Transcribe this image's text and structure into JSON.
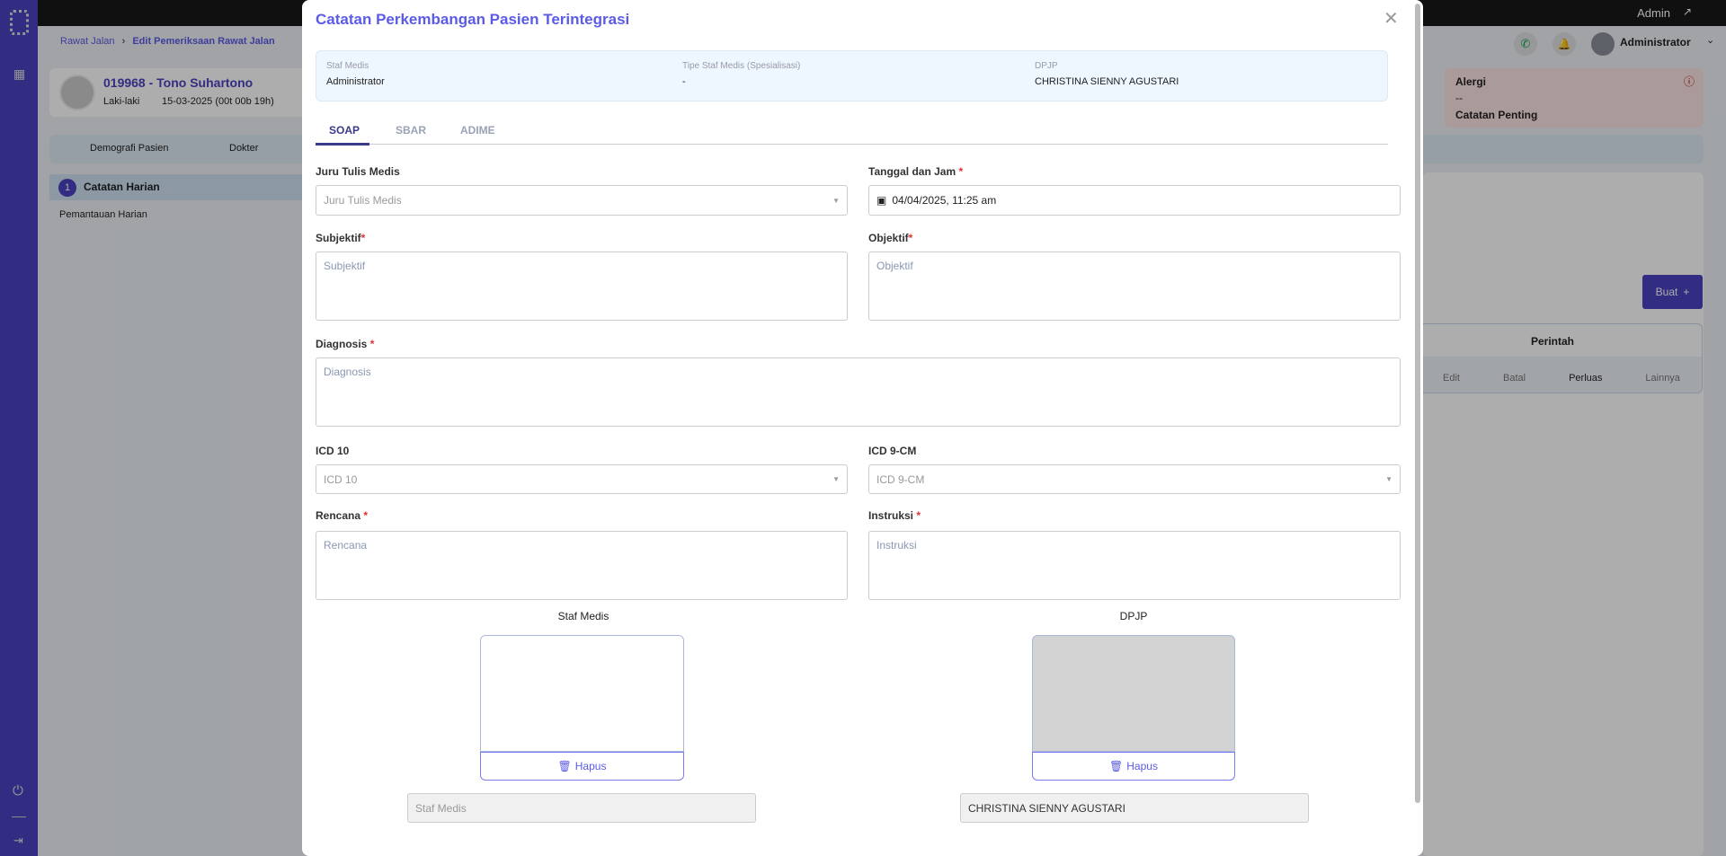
{
  "topbar": {
    "user": "Admin"
  },
  "header": {
    "user_name": "Administrator"
  },
  "breadcrumb": {
    "parent": "Rawat Jalan",
    "current": "Edit Pemeriksaan Rawat Jalan"
  },
  "patient": {
    "title": "019968 - Tono Suhartono",
    "gender": "Laki-laki",
    "dob": "15-03-2025 (00t 00b 19h)"
  },
  "alergi": {
    "label": "Alergi",
    "value": "--",
    "next_label": "Catatan Penting"
  },
  "bg_tabs": [
    "Demografi Pasien",
    "Dokter"
  ],
  "section": {
    "number": "1",
    "title": "Catatan Harian",
    "sub": "Pemantauan Harian"
  },
  "buat_label": "Buat",
  "perintah": {
    "header": "Perintah",
    "actions": [
      "Edit",
      "Batal",
      "Perluas",
      "Lainnya"
    ]
  },
  "modal": {
    "title": "Catatan Perkembangan Pasien Terintegrasi",
    "info": [
      {
        "label": "Staf Medis",
        "value": "Administrator"
      },
      {
        "label": "Tipe Staf Medis (Spesialisasi)",
        "value": "-"
      },
      {
        "label": "DPJP",
        "value": "CHRISTINA SIENNY AGUSTARI"
      }
    ],
    "tabs": [
      "SOAP",
      "SBAR",
      "ADIME"
    ],
    "active_tab": "SOAP",
    "fields": {
      "juru_label": "Juru Tulis Medis",
      "juru_placeholder": "Juru Tulis Medis",
      "tanggal_label": "Tanggal dan Jam",
      "tanggal_value": "04/04/2025, 11:25 am",
      "subjektif_label": "Subjektif",
      "subjektif_placeholder": "Subjektif",
      "objektif_label": "Objektif",
      "objektif_placeholder": "Objektif",
      "diagnosis_label": "Diagnosis",
      "diagnosis_placeholder": "Diagnosis",
      "icd10_label": "ICD 10",
      "icd10_placeholder": "ICD 10",
      "icd9_label": "ICD 9-CM",
      "icd9_placeholder": "ICD 9-CM",
      "rencana_label": "Rencana",
      "rencana_placeholder": "Rencana",
      "instruksi_label": "Instruksi",
      "instruksi_placeholder": "Instruksi"
    },
    "signatures": {
      "staf_label": "Staf Medis",
      "dpjp_label": "DPJP",
      "hapus": "Hapus",
      "staf_name_placeholder": "Staf Medis",
      "dpjp_name": "CHRISTINA SIENNY AGUSTARI"
    }
  },
  "colors": {
    "accent": "#4a43c0",
    "title": "#5b5be6",
    "required": "#e03030"
  }
}
